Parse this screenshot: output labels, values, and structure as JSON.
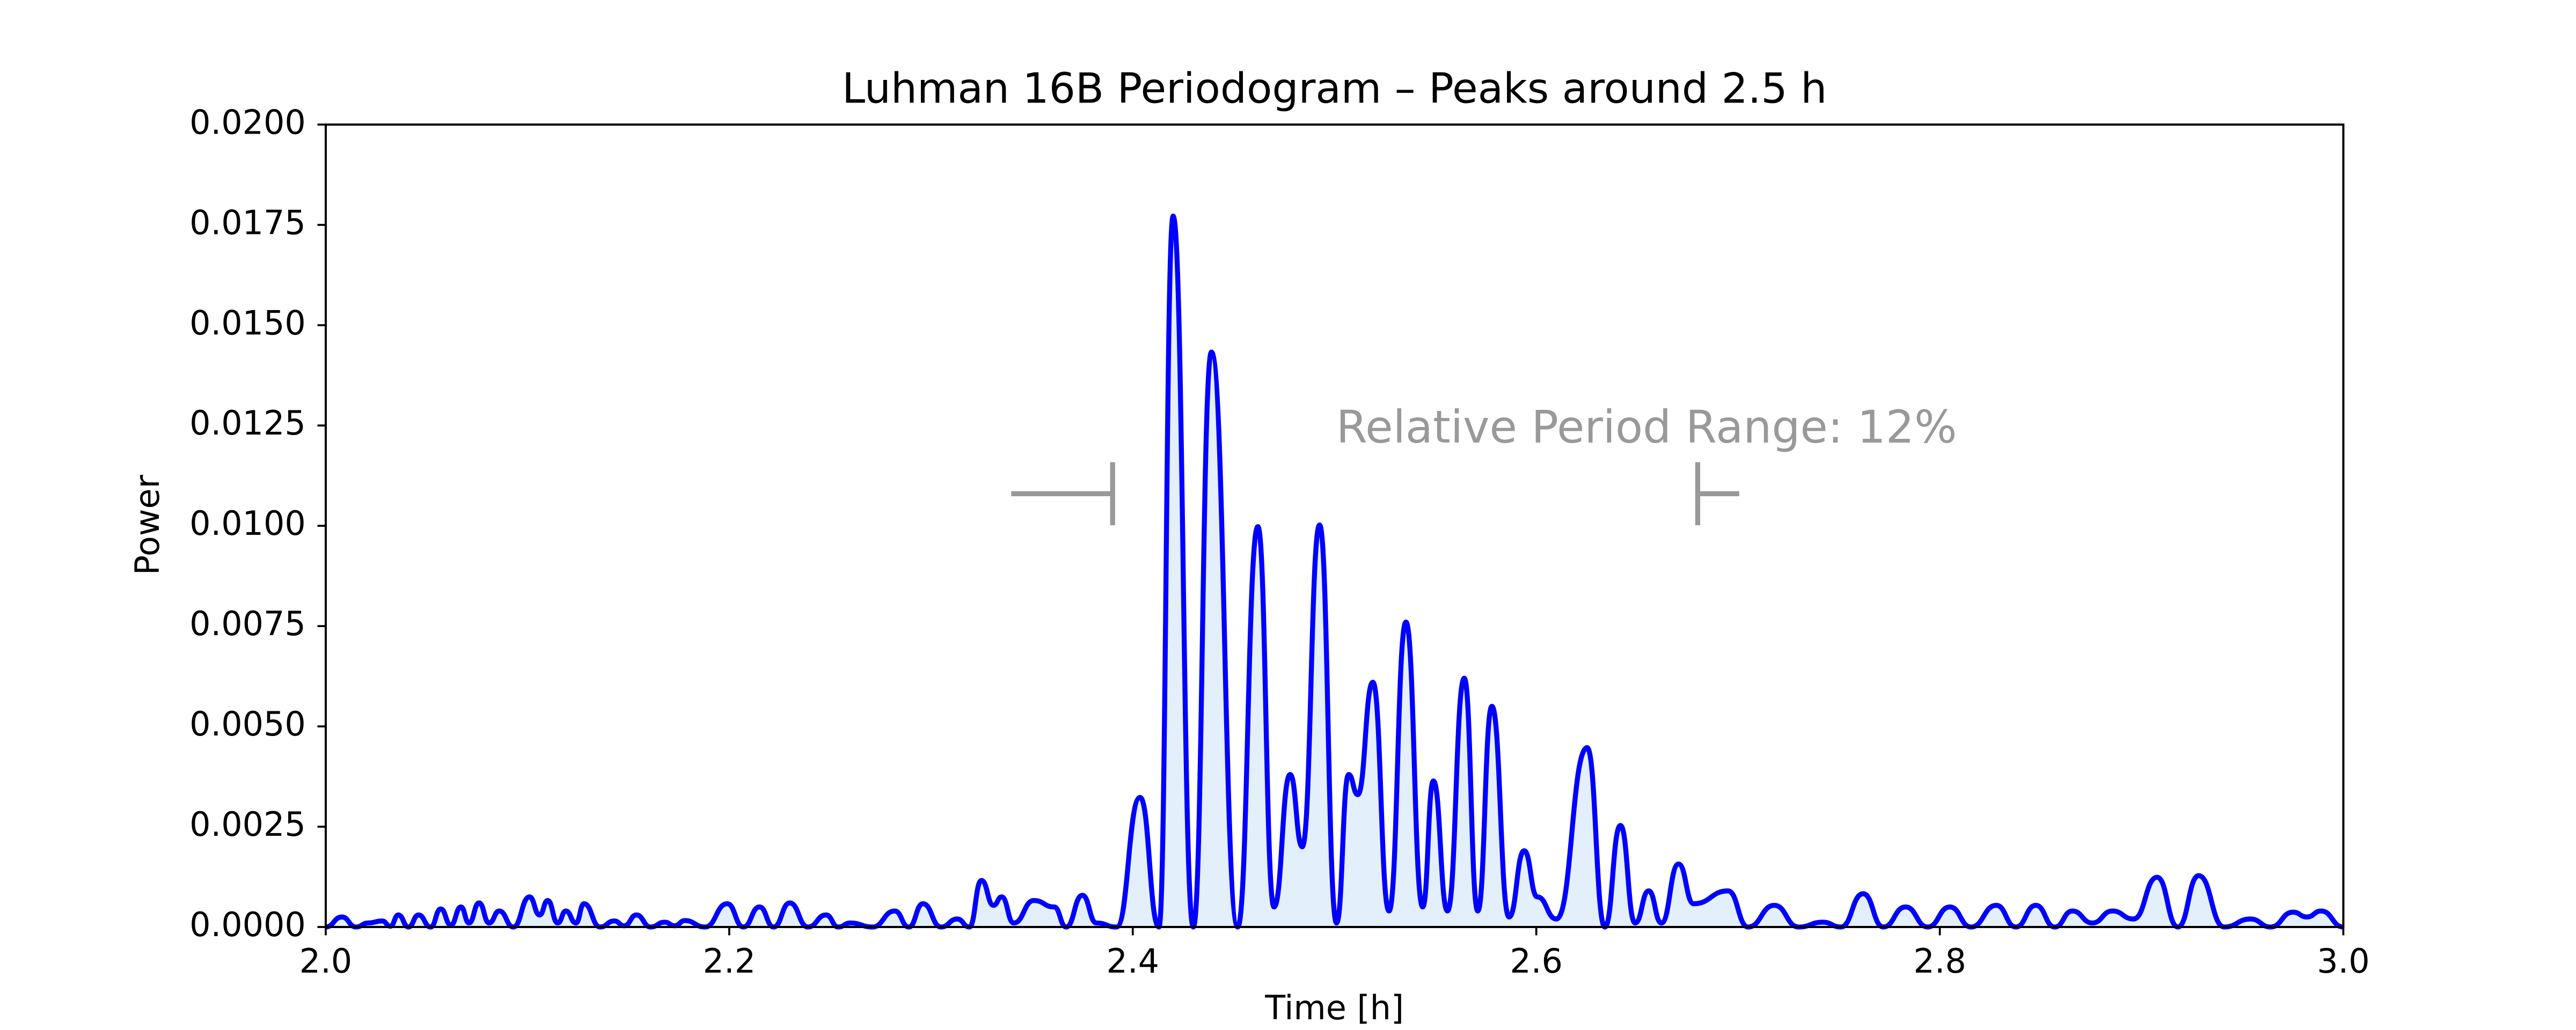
{
  "chart_data": {
    "type": "line",
    "title": "Luhman 16B Periodogram – Peaks around 2.5 h",
    "x_label": "Time [h]",
    "y_label": "Power",
    "annotation": "Relative Period Range: 12%",
    "range_markers": {
      "x": [
        2.39,
        2.68
      ],
      "y": 0.0108,
      "color": "#999999"
    },
    "xlim": [
      2.0,
      3.0
    ],
    "ylim": [
      0,
      0.02
    ],
    "xticks": [
      {
        "value": 2,
        "label": "2.0"
      },
      2.2,
      2.4,
      2.6,
      2.8,
      {
        "value": 3,
        "label": "3.0"
      }
    ],
    "yticks": [
      {
        "value": 0,
        "label": "0.0000"
      },
      {
        "value": 0.0025,
        "label": "0.0025"
      },
      {
        "value": 0.005,
        "label": "0.0050"
      },
      {
        "value": 0.0075,
        "label": "0.0075"
      },
      {
        "value": 0.01,
        "label": "0.0100"
      },
      {
        "value": 0.0125,
        "label": "0.0125"
      },
      {
        "value": 0.015,
        "label": "0.0150"
      },
      {
        "value": 0.0175,
        "label": "0.0175"
      },
      {
        "value": 0.02,
        "label": "0.0200"
      }
    ],
    "grid": false,
    "fill_color": "#e3effb",
    "x": [
      2.0,
      2.008,
      2.015,
      2.021,
      2.028,
      2.032,
      2.036,
      2.041,
      2.046,
      2.052,
      2.057,
      2.062,
      2.067,
      2.071,
      2.076,
      2.081,
      2.086,
      2.093,
      2.101,
      2.106,
      2.11,
      2.115,
      2.119,
      2.124,
      2.128,
      2.136,
      2.143,
      2.148,
      2.154,
      2.161,
      2.168,
      2.173,
      2.178,
      2.188,
      2.199,
      2.207,
      2.215,
      2.222,
      2.23,
      2.239,
      2.248,
      2.254,
      2.26,
      2.271,
      2.282,
      2.289,
      2.296,
      2.305,
      2.313,
      2.319,
      2.325,
      2.331,
      2.335,
      2.341,
      2.351,
      2.361,
      2.367,
      2.375,
      2.382,
      2.392,
      2.4036,
      2.413,
      2.42,
      2.43,
      2.439,
      2.452,
      2.462,
      2.47,
      2.478,
      2.484,
      2.4926,
      2.501,
      2.507,
      2.5115,
      2.519,
      2.527,
      2.5354,
      2.5437,
      2.549,
      2.556,
      2.5643,
      2.571,
      2.578,
      2.5865,
      2.594,
      2.6005,
      2.61,
      2.6252,
      2.634,
      2.6417,
      2.649,
      2.6557,
      2.662,
      2.6705,
      2.678,
      2.695,
      2.705,
      2.718,
      2.73,
      2.742,
      2.751,
      2.762,
      2.772,
      2.783,
      2.794,
      2.805,
      2.8155,
      2.828,
      2.8377,
      2.8476,
      2.857,
      2.8657,
      2.8756,
      2.8855,
      2.896,
      2.9077,
      2.918,
      2.9283,
      2.941,
      2.954,
      2.964,
      2.975,
      2.982,
      2.989,
      3.0
    ],
    "series": [
      {
        "color": "#0000ff",
        "values": [
          0,
          0.00025,
          0,
          0.0001,
          0.00015,
          2e-05,
          0.0003,
          0,
          0.0003,
          0,
          0.00045,
          5e-05,
          0.0005,
          0.0001,
          0.0006,
          0.0001,
          0.0004,
          0,
          0.00075,
          0.0003,
          0.00066,
          0.0001,
          0.0004,
          0.0001,
          0.00058,
          0,
          0.00015,
          3e-05,
          0.0003,
          0,
          0.00012,
          3e-05,
          0.00016,
          0,
          0.00058,
          0,
          0.0005,
          0,
          0.0006,
          0,
          0.0003,
          0,
          0.0001,
          0,
          0.0004,
          0,
          0.00058,
          0,
          0.0002,
          0,
          0.00116,
          0.00054,
          0.00075,
          0.0001,
          0.00066,
          0.0005,
          0,
          0.00079,
          0.0001,
          0,
          0.00323,
          0,
          0.01772,
          0,
          0.01433,
          0,
          0.00998,
          0.0005,
          0.0038,
          0.002,
          0.01002,
          0.0001,
          0.0038,
          0.0033,
          0.0061,
          0.0004,
          0.0076,
          0.0005,
          0.00364,
          0.0004,
          0.0062,
          0.0004,
          0.0055,
          0.00025,
          0.0019,
          0.00075,
          0.0002,
          0.00447,
          0,
          0.00253,
          0.0001,
          0.0009,
          0.0001,
          0.00157,
          0.00058,
          0.0009,
          0,
          0.00054,
          0,
          0.00012,
          0,
          0.00083,
          0,
          0.0005,
          0,
          0.0005,
          0,
          0.00054,
          0,
          0.00054,
          0,
          0.0004,
          0.0001,
          0.0004,
          0.0002,
          0.00124,
          0,
          0.00128,
          0,
          0.0002,
          0,
          0.00037,
          0.00025,
          0.0004,
          0
        ]
      }
    ]
  }
}
